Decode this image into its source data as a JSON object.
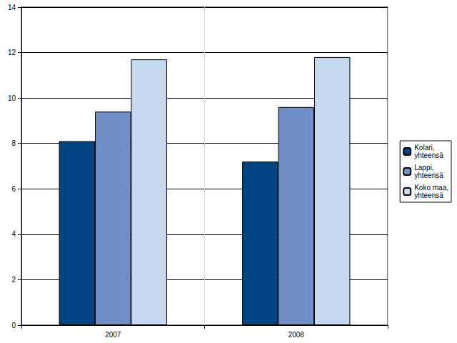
{
  "chart_data": {
    "type": "bar",
    "categories": [
      "2007",
      "2008"
    ],
    "series": [
      {
        "name": "Kolari, yhteensä",
        "color": "#004481",
        "values": [
          8.1,
          7.2
        ]
      },
      {
        "name": "Lappi, yhteensä",
        "color": "#6f8fc6",
        "values": [
          9.4,
          9.6
        ]
      },
      {
        "name": "Koko maa, yhteensä",
        "color": "#c7d8f1",
        "values": [
          11.7,
          11.8
        ]
      }
    ],
    "ylim": [
      0,
      14
    ],
    "yticks": [
      0,
      2,
      4,
      6,
      8,
      10,
      12,
      14
    ],
    "grid": true,
    "legend": "right"
  }
}
